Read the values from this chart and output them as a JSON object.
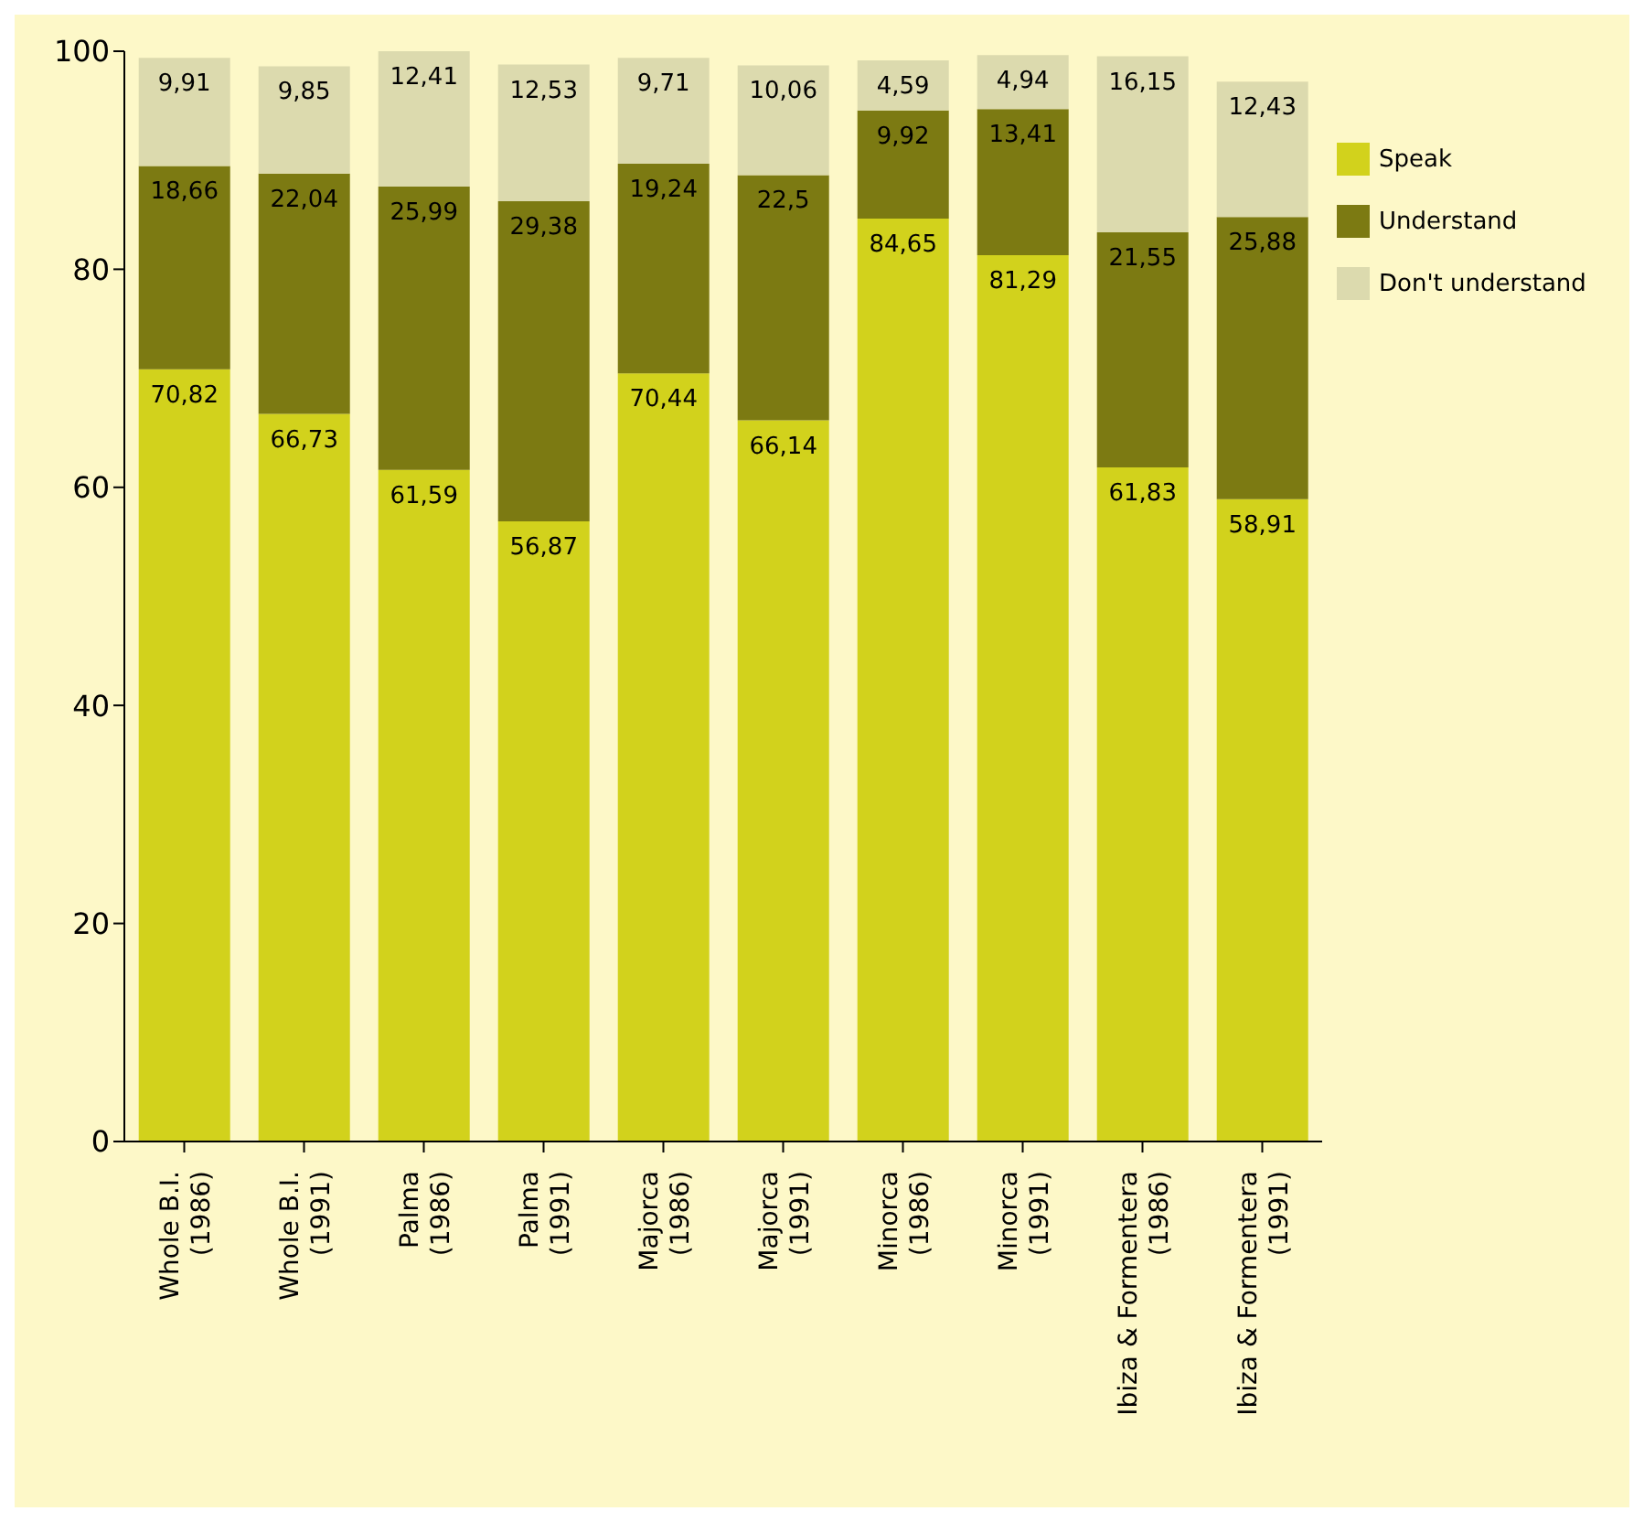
{
  "chart_data": {
    "type": "bar",
    "stacked": true,
    "categories": [
      "Whole B.I. (1986)",
      "Whole B.I. (1991)",
      "Palma (1986)",
      "Palma (1991)",
      "Majorca (1986)",
      "Majorca (1991)",
      "Minorca (1986)",
      "Minorca (1991)",
      "Ibiza & Formentera (1986)",
      "Ibiza & Formentera (1991)"
    ],
    "series": [
      {
        "name": "Speak",
        "color": "#d2d21c",
        "values": [
          70.82,
          66.73,
          61.59,
          56.87,
          70.44,
          66.14,
          84.65,
          81.29,
          61.83,
          58.91
        ],
        "value_labels": [
          "70,82",
          "66,73",
          "61,59",
          "56,87",
          "70,44",
          "66,14",
          "84,65",
          "81,29",
          "61,83",
          "58,91"
        ]
      },
      {
        "name": "Understand",
        "color": "#7c7a12",
        "values": [
          18.66,
          22.04,
          25.99,
          29.38,
          19.24,
          22.5,
          9.92,
          13.41,
          21.55,
          25.88
        ],
        "value_labels": [
          "18,66",
          "22,04",
          "25,99",
          "29,38",
          "19,24",
          "22,5",
          "9,92",
          "13,41",
          "21,55",
          "25,88"
        ]
      },
      {
        "name": "Don't understand",
        "color": "#dcdaae",
        "values": [
          9.91,
          9.85,
          12.41,
          12.53,
          9.71,
          10.06,
          4.59,
          4.94,
          16.15,
          12.43
        ],
        "value_labels": [
          "9,91",
          "9,85",
          "12,41",
          "12,53",
          "9,71",
          "10,06",
          "4,59",
          "4,94",
          "16,15",
          "12,43"
        ]
      }
    ],
    "ylim": [
      0,
      100
    ],
    "yticks": [
      0,
      20,
      40,
      60,
      80,
      100
    ],
    "legend": "right"
  }
}
